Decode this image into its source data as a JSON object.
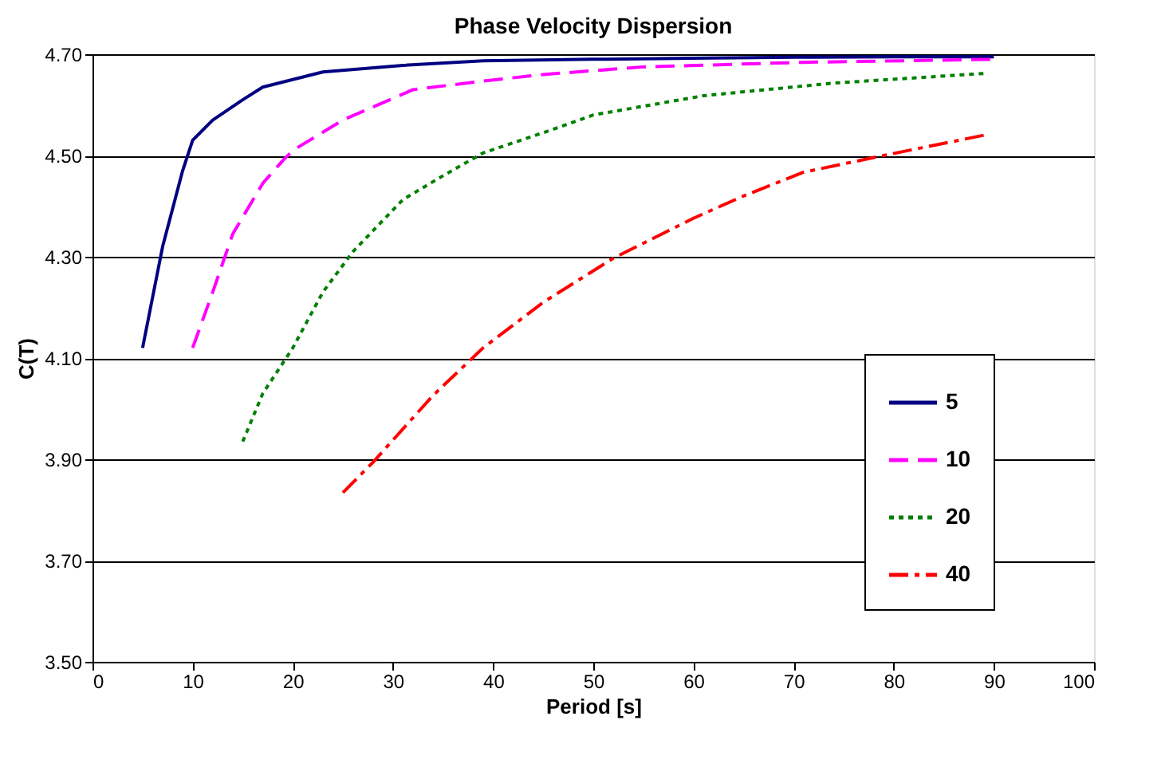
{
  "chart_data": {
    "type": "line",
    "title": "Phase Velocity Dispersion",
    "xlabel": "Period [s]",
    "ylabel": "C(T)",
    "xlim": [
      0,
      100
    ],
    "xticks": [
      0,
      10,
      20,
      30,
      40,
      50,
      60,
      70,
      80,
      90,
      100
    ],
    "ylim": [
      3.5,
      4.7
    ],
    "yticks": [
      {
        "value": 3.5,
        "label": "3.50"
      },
      {
        "value": 3.7,
        "label": "3.70"
      },
      {
        "value": 3.9,
        "label": "3.90"
      },
      {
        "value": 4.1,
        "label": "4.10"
      },
      {
        "value": 4.3,
        "label": "4.30"
      },
      {
        "value": 4.5,
        "label": "4.50"
      },
      {
        "value": 4.7,
        "label": "4.70"
      }
    ],
    "grid": "y",
    "legend": "right",
    "marker": "none",
    "series": [
      {
        "name": "5",
        "color": "#000080",
        "line_style": "solid",
        "x": [
          5,
          7,
          9,
          10,
          12,
          15,
          17,
          20,
          23,
          31,
          39,
          50,
          60,
          70,
          80,
          90
        ],
        "values": [
          4.12,
          4.32,
          4.47,
          4.53,
          4.57,
          4.61,
          4.635,
          4.65,
          4.665,
          4.678,
          4.687,
          4.69,
          4.692,
          4.694,
          4.695,
          4.695
        ]
      },
      {
        "name": "10",
        "color": "#ff00ff",
        "line_style": "dashed",
        "x": [
          10,
          12,
          14,
          17,
          19,
          20,
          25,
          32,
          39,
          45,
          55,
          71,
          90
        ],
        "values": [
          4.12,
          4.23,
          4.345,
          4.445,
          4.49,
          4.51,
          4.57,
          4.63,
          4.647,
          4.66,
          4.675,
          4.684,
          4.69
        ]
      },
      {
        "name": "20",
        "color": "#008000",
        "line_style": "dotted",
        "x": [
          15,
          17,
          20,
          23,
          26,
          31,
          35,
          39,
          45,
          50,
          61,
          74,
          89
        ],
        "values": [
          3.935,
          4.03,
          4.12,
          4.23,
          4.31,
          4.413,
          4.46,
          4.505,
          4.545,
          4.58,
          4.618,
          4.643,
          4.662
        ]
      },
      {
        "name": "40",
        "color": "#ff0000",
        "line_style": "dashdot",
        "x": [
          25,
          28,
          34,
          39,
          45,
          52,
          60,
          65,
          71,
          79,
          89
        ],
        "values": [
          3.834,
          3.894,
          4.026,
          4.12,
          4.21,
          4.297,
          4.376,
          4.42,
          4.467,
          4.5,
          4.54
        ]
      }
    ]
  }
}
